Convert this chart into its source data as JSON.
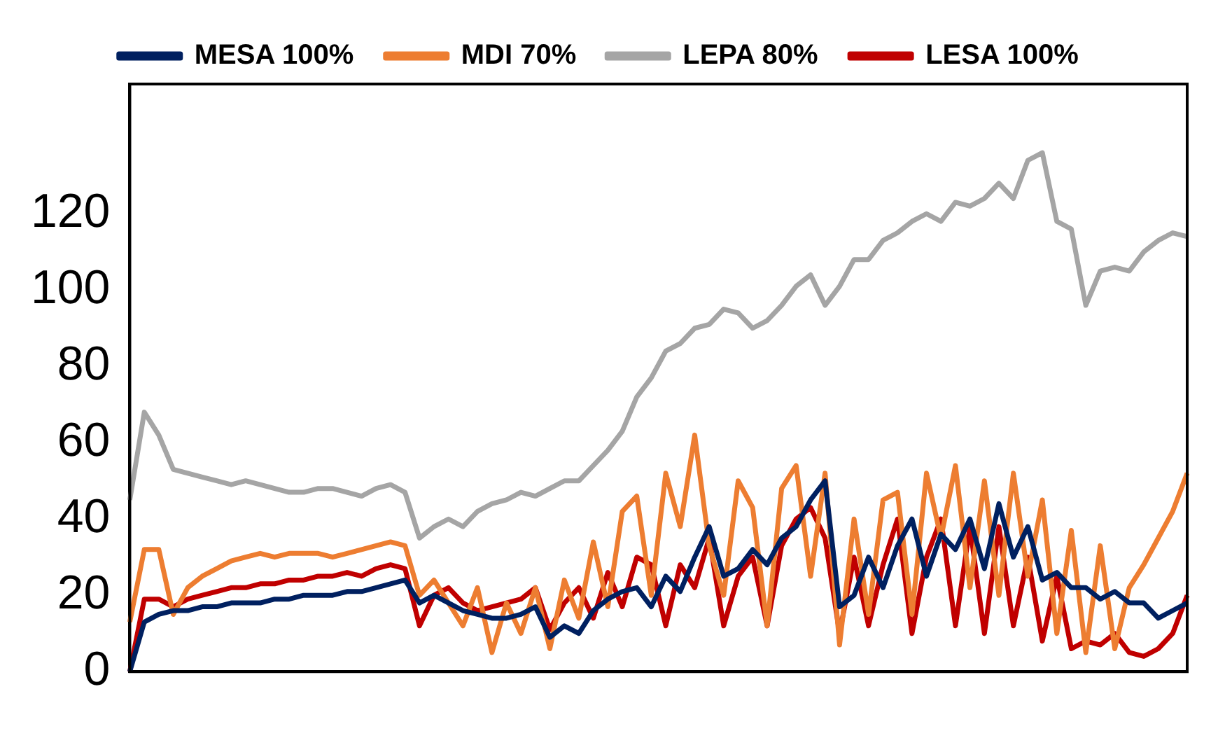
{
  "chart_data": {
    "type": "line",
    "categories": [
      null,
      null,
      null,
      null,
      null,
      null,
      null,
      null,
      null,
      null,
      null,
      null,
      null,
      null,
      null,
      null,
      null,
      null,
      null,
      null,
      null,
      null,
      null,
      null,
      null,
      null,
      null,
      null,
      null,
      null,
      null,
      null,
      null,
      null,
      null,
      null,
      null,
      null,
      null,
      null,
      null,
      null,
      null,
      null,
      null,
      null,
      null,
      null,
      null,
      null,
      null,
      null,
      null,
      null,
      null,
      null,
      null,
      null,
      null,
      null,
      null,
      null,
      null,
      null,
      null,
      null,
      null,
      null,
      null,
      null,
      null,
      null,
      null,
      null
    ],
    "series": [
      {
        "name": "MESA 100%",
        "color": "#002060",
        "values": [
          0,
          13,
          15,
          16,
          16,
          17,
          17,
          18,
          18,
          18,
          19,
          19,
          20,
          20,
          20,
          21,
          21,
          22,
          23,
          24,
          18,
          20,
          18,
          16,
          15,
          14,
          14,
          15,
          17,
          9,
          12,
          10,
          16,
          19,
          21,
          22,
          17,
          25,
          21,
          30,
          38,
          25,
          27,
          32,
          28,
          35,
          38,
          45,
          50,
          17,
          20,
          30,
          22,
          33,
          40,
          25,
          36,
          32,
          40,
          27,
          44,
          30,
          38,
          24,
          26,
          22,
          22,
          19,
          21,
          18,
          18,
          14,
          16,
          18
        ]
      },
      {
        "name": "MDI 70%",
        "color": "#ed7d31",
        "values": [
          13,
          32,
          32,
          15,
          22,
          25,
          27,
          29,
          30,
          31,
          30,
          31,
          31,
          31,
          30,
          31,
          32,
          33,
          34,
          33,
          20,
          24,
          18,
          12,
          22,
          5,
          18,
          10,
          22,
          6,
          24,
          14,
          34,
          17,
          42,
          46,
          20,
          52,
          38,
          62,
          33,
          20,
          50,
          43,
          12,
          48,
          54,
          25,
          52,
          7,
          40,
          15,
          45,
          47,
          15,
          52,
          35,
          54,
          22,
          50,
          20,
          52,
          25,
          45,
          10,
          37,
          5,
          33,
          6,
          22,
          28,
          35,
          42,
          52
        ]
      },
      {
        "name": "LEPA 80%",
        "color": "#a5a5a5",
        "values": [
          45,
          68,
          62,
          53,
          52,
          51,
          50,
          49,
          50,
          49,
          48,
          47,
          47,
          48,
          48,
          47,
          46,
          48,
          49,
          47,
          35,
          38,
          40,
          38,
          42,
          44,
          45,
          47,
          46,
          48,
          50,
          50,
          54,
          58,
          63,
          72,
          77,
          84,
          86,
          90,
          91,
          95,
          94,
          90,
          92,
          96,
          101,
          104,
          96,
          101,
          108,
          108,
          113,
          115,
          118,
          120,
          118,
          123,
          122,
          124,
          128,
          124,
          134,
          136,
          118,
          116,
          96,
          105,
          106,
          105,
          110,
          113,
          115,
          114
        ]
      },
      {
        "name": "LESA 100%",
        "color": "#c00000",
        "values": [
          0,
          19,
          19,
          17,
          19,
          20,
          21,
          22,
          22,
          23,
          23,
          24,
          24,
          25,
          25,
          26,
          25,
          27,
          28,
          27,
          12,
          20,
          22,
          18,
          16,
          17,
          18,
          19,
          22,
          11,
          18,
          22,
          14,
          26,
          17,
          30,
          28,
          12,
          28,
          22,
          35,
          12,
          25,
          30,
          12,
          33,
          40,
          43,
          35,
          10,
          30,
          12,
          28,
          40,
          10,
          30,
          40,
          12,
          38,
          10,
          38,
          12,
          30,
          8,
          25,
          6,
          8,
          7,
          10,
          5,
          4,
          6,
          10,
          20
        ]
      }
    ],
    "ylim": [
      0,
      154
    ],
    "yticks": [
      0,
      20,
      40,
      60,
      80,
      100,
      120
    ],
    "legend": "top",
    "grid": false,
    "marker": "none",
    "line_style": "solid"
  }
}
